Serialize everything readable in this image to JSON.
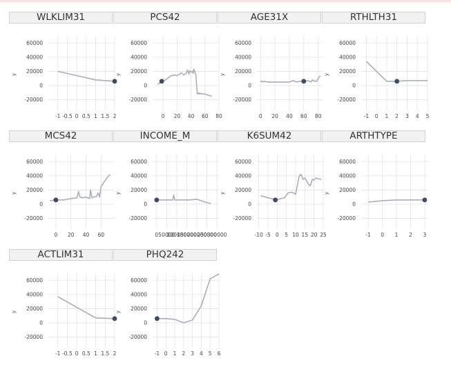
{
  "chart_data": [
    {
      "type": "line",
      "title": "WLKLIM31",
      "xlabel": "",
      "ylabel": "y",
      "xlim": [
        -1.5,
        2.0
      ],
      "ylim": [
        -35000,
        70000
      ],
      "xticks": [
        -1,
        -0.5,
        0,
        0.5,
        1,
        1.5,
        2
      ],
      "xticklabels": [
        "-1",
        "-0.5",
        "0",
        "0.5",
        "1",
        "1.5",
        "2"
      ],
      "yticks": [
        -20000,
        0,
        20000,
        40000,
        60000
      ],
      "yticklabels": [
        "-20000",
        "0",
        "20000",
        "40000",
        "60000"
      ],
      "series": [
        {
          "x": [
            -1,
            0,
            1,
            2
          ],
          "y": [
            20000,
            14000,
            8000,
            6000
          ]
        }
      ],
      "point": {
        "x": 2,
        "y": 6000
      }
    },
    {
      "type": "line",
      "title": "PCS42",
      "xlabel": "",
      "ylabel": "y",
      "xlim": [
        -15,
        80
      ],
      "ylim": [
        -35000,
        70000
      ],
      "xticks": [
        0,
        20,
        40,
        60,
        80
      ],
      "xticklabels": [
        "0",
        "20",
        "40",
        "60",
        "80"
      ],
      "yticks": [
        -20000,
        0,
        20000,
        40000,
        60000
      ],
      "yticklabels": [
        "-20000",
        "0",
        "20000",
        "40000",
        "60000"
      ],
      "series": [
        {
          "x": [
            -8,
            -3,
            0,
            5,
            10,
            15,
            20,
            24,
            26,
            30,
            33,
            35,
            37,
            38,
            40,
            42,
            43,
            44,
            45,
            47,
            48,
            49,
            50,
            51,
            52,
            53,
            56,
            60,
            63,
            66,
            70
          ],
          "y": [
            2000,
            4000,
            6000,
            9000,
            13000,
            15000,
            14000,
            16000,
            18000,
            15000,
            17000,
            22000,
            16000,
            21000,
            19000,
            20000,
            17000,
            23000,
            21000,
            14000,
            0,
            -12000,
            -11000,
            -10000,
            -12000,
            -11000,
            -12000,
            -12000,
            -13000,
            -14000,
            -15000
          ]
        }
      ],
      "point": {
        "x": -2,
        "y": 6000
      }
    },
    {
      "type": "line",
      "title": "AGE31X",
      "xlabel": "",
      "ylabel": "y",
      "xlim": [
        -5,
        87
      ],
      "ylim": [
        -35000,
        70000
      ],
      "xticks": [
        0,
        20,
        40,
        60,
        80
      ],
      "xticklabels": [
        "0",
        "20",
        "40",
        "60",
        "80"
      ],
      "yticks": [
        -20000,
        0,
        20000,
        40000,
        60000
      ],
      "yticklabels": [
        "-20000",
        "0",
        "20000",
        "40000",
        "60000"
      ],
      "series": [
        {
          "x": [
            0,
            2,
            4,
            10,
            20,
            30,
            40,
            45,
            50,
            55,
            60,
            63,
            66,
            70,
            72,
            75,
            78,
            80,
            83
          ],
          "y": [
            7000,
            5000,
            6000,
            5000,
            5000,
            5000,
            5000,
            7000,
            5000,
            6000,
            5000,
            6000,
            7000,
            5000,
            8000,
            6000,
            6000,
            10000,
            14000
          ]
        }
      ],
      "point": {
        "x": 60,
        "y": 6000
      }
    },
    {
      "type": "line",
      "title": "RTHLTH31",
      "xlabel": "",
      "ylabel": "y",
      "xlim": [
        -1.5,
        5.0
      ],
      "ylim": [
        -35000,
        70000
      ],
      "xticks": [
        -1,
        0,
        1,
        2,
        3,
        4,
        5
      ],
      "xticklabels": [
        "-1",
        "0",
        "1",
        "2",
        "3",
        "4",
        "5"
      ],
      "yticks": [
        -20000,
        0,
        20000,
        40000,
        60000
      ],
      "yticklabels": [
        "-20000",
        "0",
        "20000",
        "40000",
        "60000"
      ],
      "series": [
        {
          "x": [
            -1,
            0,
            1,
            2,
            3,
            4,
            5
          ],
          "y": [
            34000,
            20000,
            6000,
            6000,
            7000,
            7000,
            7000
          ]
        }
      ],
      "point": {
        "x": 2,
        "y": 6000
      }
    },
    {
      "type": "line",
      "title": "MCS42",
      "xlabel": "",
      "ylabel": "y",
      "xlim": [
        -10,
        78
      ],
      "ylim": [
        -35000,
        70000
      ],
      "xticks": [
        0,
        20,
        40,
        60
      ],
      "xticklabels": [
        "0",
        "20",
        "40",
        "60"
      ],
      "yticks": [
        -20000,
        0,
        20000,
        40000,
        60000
      ],
      "yticklabels": [
        "-20000",
        "0",
        "20000",
        "40000",
        "60000"
      ],
      "series": [
        {
          "x": [
            -8,
            0,
            10,
            20,
            28,
            30,
            32,
            35,
            40,
            45,
            46,
            48,
            50,
            54,
            56,
            58,
            60,
            65,
            70,
            72
          ],
          "y": [
            5000,
            6000,
            6000,
            8000,
            9000,
            18000,
            10000,
            9000,
            10000,
            8000,
            20000,
            9000,
            10000,
            11000,
            16000,
            10000,
            25000,
            33000,
            40000,
            42000
          ]
        }
      ],
      "point": {
        "x": 0,
        "y": 6000
      }
    },
    {
      "type": "line",
      "title": "INCOME_M",
      "xlabel": "",
      "ylabel": "y",
      "xlim": [
        -20000,
        310000
      ],
      "ylim": [
        -35000,
        70000
      ],
      "xticks": [
        0,
        50000,
        100000,
        150000,
        200000,
        250000,
        300000
      ],
      "xticklabels": [
        "0",
        "50000",
        "100000",
        "150000",
        "200000",
        "250000",
        "300000"
      ],
      "yticks": [
        -20000,
        0,
        20000,
        40000,
        60000
      ],
      "yticklabels": [
        "-20000",
        "0",
        "20000",
        "40000",
        "60000"
      ],
      "series": [
        {
          "x": [
            -5000,
            20000,
            50000,
            80000,
            85000,
            90000,
            120000,
            160000,
            200000,
            240000,
            270000
          ],
          "y": [
            7000,
            6000,
            6000,
            6000,
            13000,
            6000,
            6000,
            6000,
            7000,
            3000,
            1000
          ]
        }
      ],
      "point": {
        "x": 0,
        "y": 6000
      }
    },
    {
      "type": "line",
      "title": "K6SUM42",
      "xlabel": "",
      "ylabel": "y",
      "xlim": [
        -11,
        25
      ],
      "ylim": [
        -35000,
        70000
      ],
      "xticks": [
        -10,
        -5,
        0,
        5,
        10,
        15,
        20,
        25
      ],
      "xticklabels": [
        "-10",
        "-5",
        "0",
        "5",
        "10",
        "15",
        "20",
        "25"
      ],
      "yticks": [
        -20000,
        0,
        20000,
        40000,
        60000
      ],
      "yticklabels": [
        "-20000",
        "0",
        "20000",
        "40000",
        "60000"
      ],
      "series": [
        {
          "x": [
            -9,
            -5,
            0,
            2,
            4,
            6,
            8,
            10,
            12,
            13,
            14,
            15,
            16,
            17,
            18,
            19,
            20,
            21,
            22,
            24
          ],
          "y": [
            12000,
            9000,
            6000,
            8000,
            9000,
            16000,
            17000,
            14000,
            40000,
            42000,
            35000,
            37000,
            33000,
            28000,
            26000,
            35000,
            34000,
            37000,
            36000,
            35000
          ]
        }
      ],
      "point": {
        "x": -1,
        "y": 6000
      }
    },
    {
      "type": "line",
      "title": "ARTHTYPE",
      "xlabel": "",
      "ylabel": "y",
      "xlim": [
        -1.5,
        3.2
      ],
      "ylim": [
        -35000,
        70000
      ],
      "xticks": [
        -1,
        0,
        1,
        2,
        3
      ],
      "xticklabels": [
        "-1",
        "0",
        "1",
        "2",
        "3"
      ],
      "yticks": [
        -20000,
        0,
        20000,
        40000,
        60000
      ],
      "yticklabels": [
        "-20000",
        "0",
        "20000",
        "40000",
        "60000"
      ],
      "series": [
        {
          "x": [
            -1,
            0,
            1,
            2,
            3
          ],
          "y": [
            3000,
            5000,
            6000,
            6000,
            6000
          ]
        }
      ],
      "point": {
        "x": 3,
        "y": 6000
      }
    },
    {
      "type": "line",
      "title": "ACTLIM31",
      "xlabel": "",
      "ylabel": "y",
      "xlim": [
        -1.5,
        2.0
      ],
      "ylim": [
        -35000,
        70000
      ],
      "xticks": [
        -1,
        -0.5,
        0,
        0.5,
        1,
        1.5,
        2
      ],
      "xticklabels": [
        "-1",
        "-0.5",
        "0",
        "0.5",
        "1",
        "1.5",
        "2"
      ],
      "yticks": [
        -20000,
        0,
        20000,
        40000,
        60000
      ],
      "yticklabels": [
        "-20000",
        "0",
        "20000",
        "40000",
        "60000"
      ],
      "series": [
        {
          "x": [
            -1,
            0,
            1,
            2
          ],
          "y": [
            37000,
            22000,
            7000,
            6000
          ]
        }
      ],
      "point": {
        "x": 2,
        "y": 6000
      }
    },
    {
      "type": "line",
      "title": "PHQ242",
      "xlabel": "",
      "ylabel": "y",
      "xlim": [
        -1.5,
        6.0
      ],
      "ylim": [
        -35000,
        70000
      ],
      "xticks": [
        -1,
        0,
        1,
        2,
        3,
        4,
        5,
        6
      ],
      "xticklabels": [
        "-1",
        "0",
        "1",
        "2",
        "3",
        "4",
        "5",
        "6"
      ],
      "yticks": [
        -20000,
        0,
        20000,
        40000,
        60000
      ],
      "yticklabels": [
        "-20000",
        "0",
        "20000",
        "40000",
        "60000"
      ],
      "series": [
        {
          "x": [
            -1,
            0,
            1,
            2,
            3,
            4,
            5,
            6
          ],
          "y": [
            6000,
            6000,
            5000,
            0,
            4000,
            24000,
            62000,
            69000
          ]
        }
      ],
      "point": {
        "x": -1,
        "y": 6000
      }
    }
  ]
}
